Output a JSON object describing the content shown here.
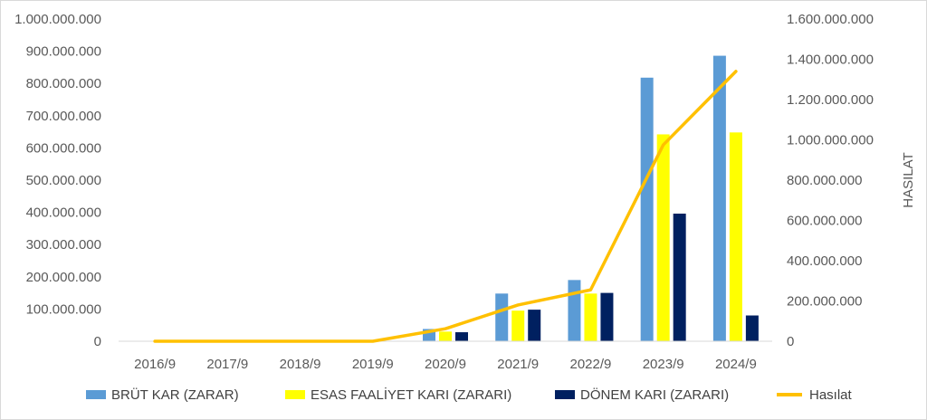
{
  "chart_data": {
    "type": "bar",
    "categories": [
      "2016/9",
      "2017/9",
      "2018/9",
      "2019/9",
      "2020/9",
      "2021/9",
      "2022/9",
      "2023/9",
      "2024/9"
    ],
    "series": [
      {
        "name": "BRÜT KAR (ZARAR)",
        "type": "bar",
        "axis": "left",
        "color": "#5B9BD5",
        "values": [
          0,
          0,
          0,
          0,
          38000000,
          148000000,
          190000000,
          818000000,
          886000000
        ]
      },
      {
        "name": "ESAS FAALİYET KARI (ZARARI)",
        "type": "bar",
        "axis": "left",
        "color": "#FFFF00",
        "values": [
          0,
          0,
          0,
          0,
          30000000,
          95000000,
          148000000,
          642000000,
          648000000
        ]
      },
      {
        "name": "DÖNEM KARI (ZARARI)",
        "type": "bar",
        "axis": "left",
        "color": "#002060",
        "values": [
          0,
          0,
          0,
          0,
          28000000,
          98000000,
          150000000,
          396000000,
          80000000
        ]
      },
      {
        "name": "Hasılat",
        "type": "line",
        "axis": "right",
        "color": "#FFC000",
        "values": [
          0,
          0,
          0,
          0,
          62000000,
          180000000,
          255000000,
          975000000,
          1340000000
        ]
      }
    ],
    "ylim_left": [
      0,
      1000000000
    ],
    "ylim_right": [
      0,
      1600000000
    ],
    "yticks_left": [
      "0",
      "100.000.000",
      "200.000.000",
      "300.000.000",
      "400.000.000",
      "500.000.000",
      "600.000.000",
      "700.000.000",
      "800.000.000",
      "900.000.000",
      "1.000.000.000"
    ],
    "yticks_right": [
      "0",
      "200.000.000",
      "400.000.000",
      "600.000.000",
      "800.000.000",
      "1.000.000.000",
      "1.200.000.000",
      "1.400.000.000",
      "1.600.000.000"
    ],
    "ylabel_right": "HASILAT",
    "grid": false,
    "legend_position": "bottom"
  }
}
